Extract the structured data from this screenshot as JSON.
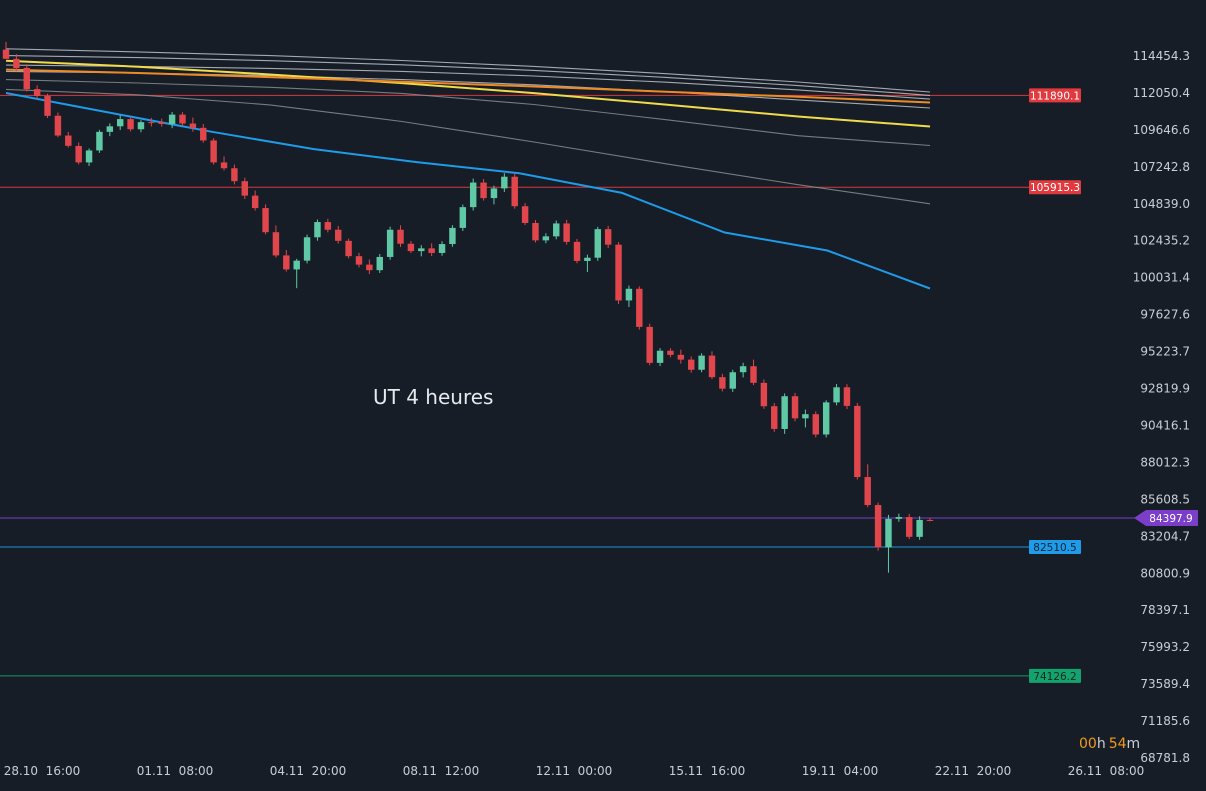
{
  "chart_data": {
    "type": "candlestick",
    "annotation": "UT 4 heures",
    "countdown": {
      "hours": "00",
      "h_unit": "h",
      "minutes": "54",
      "m_unit": "m"
    },
    "x_ticks": [
      "28.10  16:00",
      "01.11  08:00",
      "04.11  20:00",
      "08.11  12:00",
      "12.11  00:00",
      "15.11  16:00",
      "19.11  04:00",
      "22.11  20:00",
      "26.11  08:00"
    ],
    "y_ticks": [
      "114454.3",
      "112050.4",
      "109646.6",
      "107242.8",
      "104839.0",
      "102435.2",
      "100031.4",
      "97627.6",
      "95223.7",
      "92819.9",
      "90416.1",
      "88012.3",
      "85608.5",
      "83204.7",
      "80800.9",
      "78397.1",
      "75993.2",
      "73589.4",
      "71185.6",
      "68781.8"
    ],
    "ylim": [
      68781.8,
      114454.3
    ],
    "grid": false,
    "colors": {
      "up": "#5fc9a6",
      "down": "#e0464b",
      "background": "#161d26"
    },
    "horizontal_levels": [
      {
        "value": 111890.1,
        "label": "111890.1",
        "color": "#e03a3e"
      },
      {
        "value": 105915.3,
        "label": "105915.3",
        "color": "#e03a3e"
      },
      {
        "value": 84397.9,
        "label": "84397.9",
        "color": "#7a3ec9",
        "kind": "last_price"
      },
      {
        "value": 82510.5,
        "label": "82510.5",
        "color": "#1e9be9"
      },
      {
        "value": 74126.2,
        "label": "74126.2",
        "color": "#14a36e"
      }
    ],
    "moving_averages": [
      {
        "color": "#c8ccd2",
        "values": [
          114920,
          114720,
          114480,
          114160,
          113780,
          113300,
          112760,
          112110
        ]
      },
      {
        "color": "#c8ccd2",
        "values": [
          114480,
          114350,
          114150,
          113880,
          113520,
          113060,
          112530,
          111890
        ]
      },
      {
        "color": "#c8ccd2",
        "values": [
          113860,
          113780,
          113650,
          113450,
          113150,
          112750,
          112250,
          111650
        ]
      },
      {
        "color": "#c8ccd2",
        "values": [
          113450,
          113350,
          113180,
          112920,
          112580,
          112130,
          111600,
          111070
        ]
      },
      {
        "color": "#f0db4a",
        "values": [
          114150,
          113760,
          113250,
          112690,
          112040,
          111290,
          110520,
          109870
        ]
      },
      {
        "color": "#f08a24",
        "values": [
          113570,
          113350,
          113080,
          112780,
          112470,
          112130,
          111800,
          111430
        ]
      },
      {
        "color": "#8e939a",
        "values": [
          112920,
          112700,
          112420,
          112020,
          111300,
          110310,
          109270,
          108630
        ]
      },
      {
        "color": "#8e939a",
        "values": [
          112280,
          111930,
          111270,
          110190,
          108860,
          107440,
          106080,
          104840
        ]
      },
      {
        "color": "#1e9be9",
        "values": [
          112050,
          110780,
          109530,
          108400,
          107550,
          106820,
          105550,
          102970,
          101800,
          99330
        ]
      }
    ],
    "candles": [
      [
        114870,
        115370,
        114370,
        114270
      ],
      [
        114270,
        114580,
        113470,
        113670
      ],
      [
        113680,
        113920,
        112150,
        112290
      ],
      [
        112300,
        112550,
        111660,
        111850
      ],
      [
        111850,
        112000,
        110420,
        110560
      ],
      [
        110570,
        110780,
        109170,
        109280
      ],
      [
        109280,
        109520,
        108500,
        108610
      ],
      [
        108600,
        108830,
        107400,
        107530
      ],
      [
        107530,
        108440,
        107300,
        108310
      ],
      [
        108310,
        109650,
        108150,
        109520
      ],
      [
        109520,
        110070,
        109240,
        109880
      ],
      [
        109880,
        110590,
        109640,
        110350
      ],
      [
        110350,
        110440,
        109550,
        109690
      ],
      [
        109690,
        110280,
        109490,
        110150
      ],
      [
        110150,
        110430,
        109870,
        110140
      ],
      [
        110140,
        110380,
        109860,
        110030
      ],
      [
        110030,
        110810,
        109760,
        110640
      ],
      [
        110640,
        110800,
        109900,
        110060
      ],
      [
        110060,
        110450,
        109530,
        109780
      ],
      [
        109780,
        110030,
        108810,
        108960
      ],
      [
        108960,
        109110,
        107390,
        107530
      ],
      [
        107530,
        107920,
        107000,
        107150
      ],
      [
        107150,
        107390,
        106100,
        106310
      ],
      [
        106310,
        106530,
        105150,
        105370
      ],
      [
        105370,
        105700,
        104400,
        104560
      ],
      [
        104560,
        104800,
        102850,
        102990
      ],
      [
        102990,
        103430,
        101340,
        101480
      ],
      [
        101480,
        101830,
        100430,
        100570
      ],
      [
        100570,
        101260,
        99350,
        101140
      ],
      [
        101140,
        102830,
        100960,
        102660
      ],
      [
        102660,
        103820,
        102440,
        103650
      ],
      [
        103650,
        103860,
        102980,
        103150
      ],
      [
        103150,
        103400,
        102250,
        102430
      ],
      [
        102430,
        102570,
        101290,
        101430
      ],
      [
        101430,
        101650,
        100700,
        100880
      ],
      [
        100880,
        101210,
        100270,
        100520
      ],
      [
        100520,
        101570,
        100340,
        101380
      ],
      [
        101380,
        103350,
        101200,
        103150
      ],
      [
        103150,
        103440,
        102030,
        102240
      ],
      [
        102240,
        102420,
        101630,
        101760
      ],
      [
        101760,
        102150,
        101420,
        101940
      ],
      [
        101940,
        102270,
        101440,
        101640
      ],
      [
        101640,
        102400,
        101460,
        102220
      ],
      [
        102220,
        103450,
        102040,
        103270
      ],
      [
        103270,
        104790,
        103070,
        104620
      ],
      [
        104620,
        106480,
        104400,
        106220
      ],
      [
        106220,
        106450,
        105050,
        105210
      ],
      [
        105210,
        106020,
        104800,
        105840
      ],
      [
        105840,
        106830,
        105610,
        106600
      ],
      [
        106600,
        106820,
        104520,
        104680
      ],
      [
        104680,
        104880,
        103460,
        103590
      ],
      [
        103590,
        103780,
        102320,
        102460
      ],
      [
        102460,
        102920,
        102270,
        102720
      ],
      [
        102720,
        103750,
        102530,
        103560
      ],
      [
        103560,
        103800,
        102180,
        102360
      ],
      [
        102360,
        102550,
        100970,
        101120
      ],
      [
        101120,
        101530,
        100400,
        101330
      ],
      [
        101330,
        103340,
        101130,
        103190
      ],
      [
        103190,
        103400,
        101960,
        102180
      ],
      [
        102180,
        102350,
        98320,
        98550
      ],
      [
        98550,
        99520,
        98120,
        99310
      ],
      [
        99310,
        99470,
        96650,
        96830
      ],
      [
        96830,
        97040,
        94340,
        94490
      ],
      [
        94490,
        95450,
        94280,
        95280
      ],
      [
        95280,
        95450,
        94850,
        95010
      ],
      [
        95010,
        95350,
        94440,
        94700
      ],
      [
        94700,
        94910,
        93850,
        94040
      ],
      [
        94040,
        95110,
        93880,
        94960
      ],
      [
        94960,
        95240,
        93430,
        93560
      ],
      [
        93560,
        93780,
        92630,
        92810
      ],
      [
        92810,
        94040,
        92600,
        93880
      ],
      [
        93880,
        94500,
        93540,
        94270
      ],
      [
        94270,
        94700,
        93040,
        93190
      ],
      [
        93190,
        93410,
        91500,
        91670
      ],
      [
        91670,
        91880,
        90000,
        90190
      ],
      [
        90190,
        92500,
        89870,
        92320
      ],
      [
        92320,
        92530,
        90690,
        90880
      ],
      [
        90880,
        91450,
        90290,
        91150
      ],
      [
        91150,
        91340,
        89640,
        89830
      ],
      [
        89830,
        92060,
        89640,
        91920
      ],
      [
        91920,
        93110,
        91730,
        92900
      ],
      [
        92900,
        93100,
        91480,
        91690
      ],
      [
        91690,
        91880,
        86900,
        87060
      ],
      [
        87060,
        87890,
        85100,
        85240
      ],
      [
        85240,
        85400,
        82270,
        82480
      ],
      [
        82480,
        84600,
        80840,
        84340
      ],
      [
        84340,
        84680,
        84150,
        84460
      ],
      [
        84460,
        84670,
        83020,
        83170
      ],
      [
        83170,
        84510,
        82980,
        84270
      ],
      [
        84270,
        84400,
        84180,
        84240
      ]
    ]
  }
}
